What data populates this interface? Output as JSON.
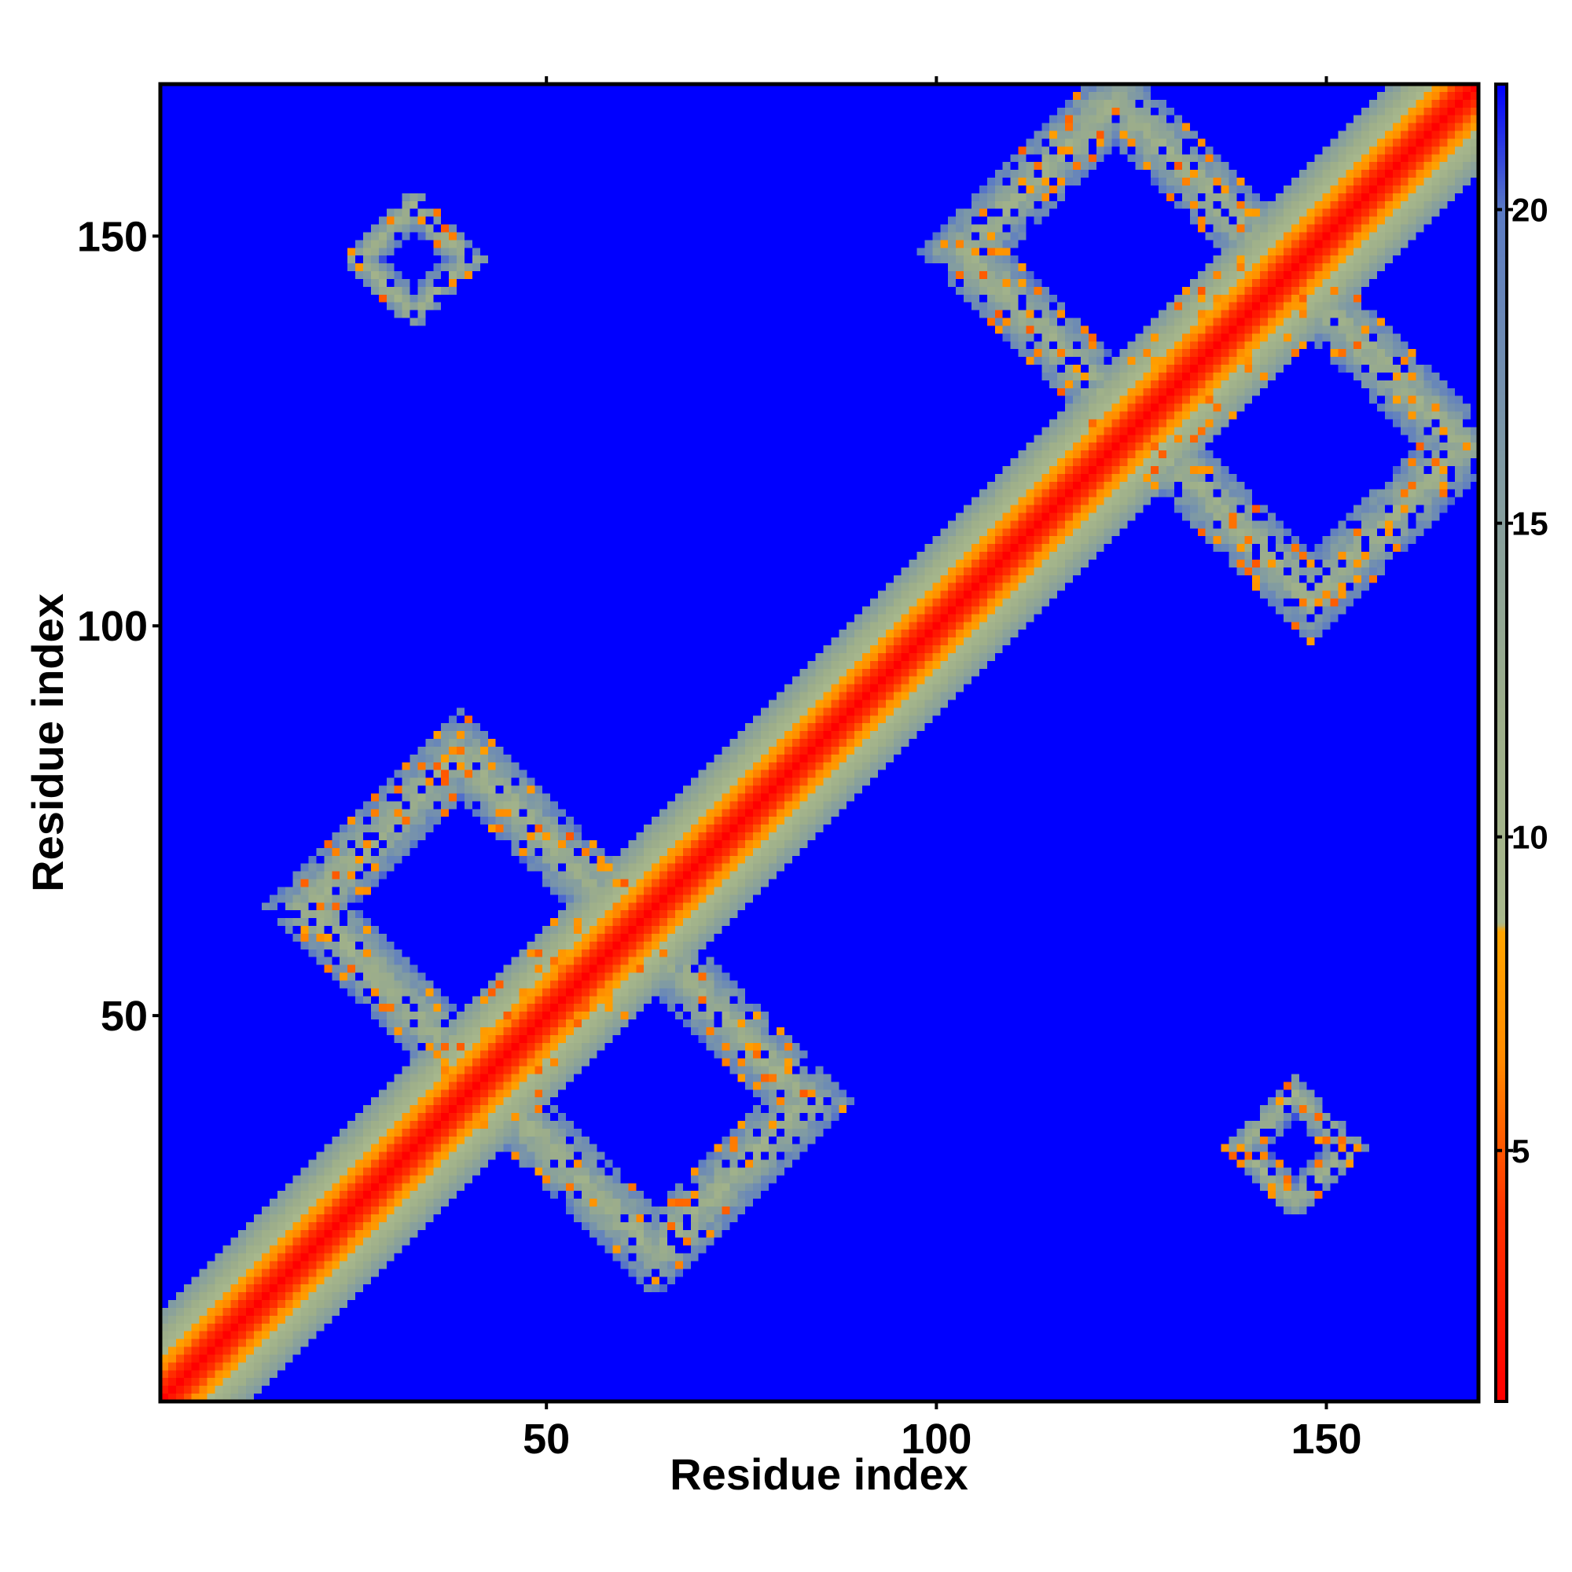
{
  "chart_data": {
    "type": "heatmap",
    "title": "",
    "xlabel": "Residue index",
    "ylabel": "Residue index",
    "xlim": [
      1,
      169
    ],
    "ylim": [
      1,
      169
    ],
    "x_ticks": [
      50,
      100,
      150
    ],
    "y_ticks": [
      50,
      100,
      150
    ],
    "n_residues": 169,
    "colorbar": {
      "range": [
        1,
        22
      ],
      "ticks": [
        5,
        10,
        15,
        20
      ],
      "stops": [
        {
          "value": 1,
          "color": "#ff0000"
        },
        {
          "value": 4,
          "color": "#ff3300"
        },
        {
          "value": 6.5,
          "color": "#ff8c00"
        },
        {
          "value": 8.5,
          "color": "#ffa500"
        },
        {
          "value": 8.6,
          "color": "#a9b98c"
        },
        {
          "value": 12,
          "color": "#9dae8a"
        },
        {
          "value": 16,
          "color": "#7f9aa4"
        },
        {
          "value": 20,
          "color": "#5b7bc4"
        },
        {
          "value": 22,
          "color": "#0000ff"
        }
      ]
    },
    "background_value": 22,
    "diagonal_band": {
      "center_value": 1,
      "slope_per_residue": 1.3,
      "half_width": 6
    },
    "contact_features": [
      {
        "name": "loop-a",
        "center": [
          39,
          64
        ],
        "radius": 17,
        "width": 6
      },
      {
        "name": "loop-b",
        "center": [
          64,
          39
        ],
        "radius": 17,
        "width": 6
      },
      {
        "name": "loop-c",
        "center": [
          123,
          148
        ],
        "radius": 17,
        "width": 6
      },
      {
        "name": "loop-d",
        "center": [
          148,
          123
        ],
        "radius": 17,
        "width": 6
      },
      {
        "name": "island-top-left",
        "center": [
          33,
          147
        ],
        "radius": 6,
        "width": 3
      },
      {
        "name": "island-bottom-right",
        "center": [
          146,
          33
        ],
        "radius": 6,
        "width": 3
      }
    ],
    "grid": false,
    "legend": "colorbar-right"
  }
}
